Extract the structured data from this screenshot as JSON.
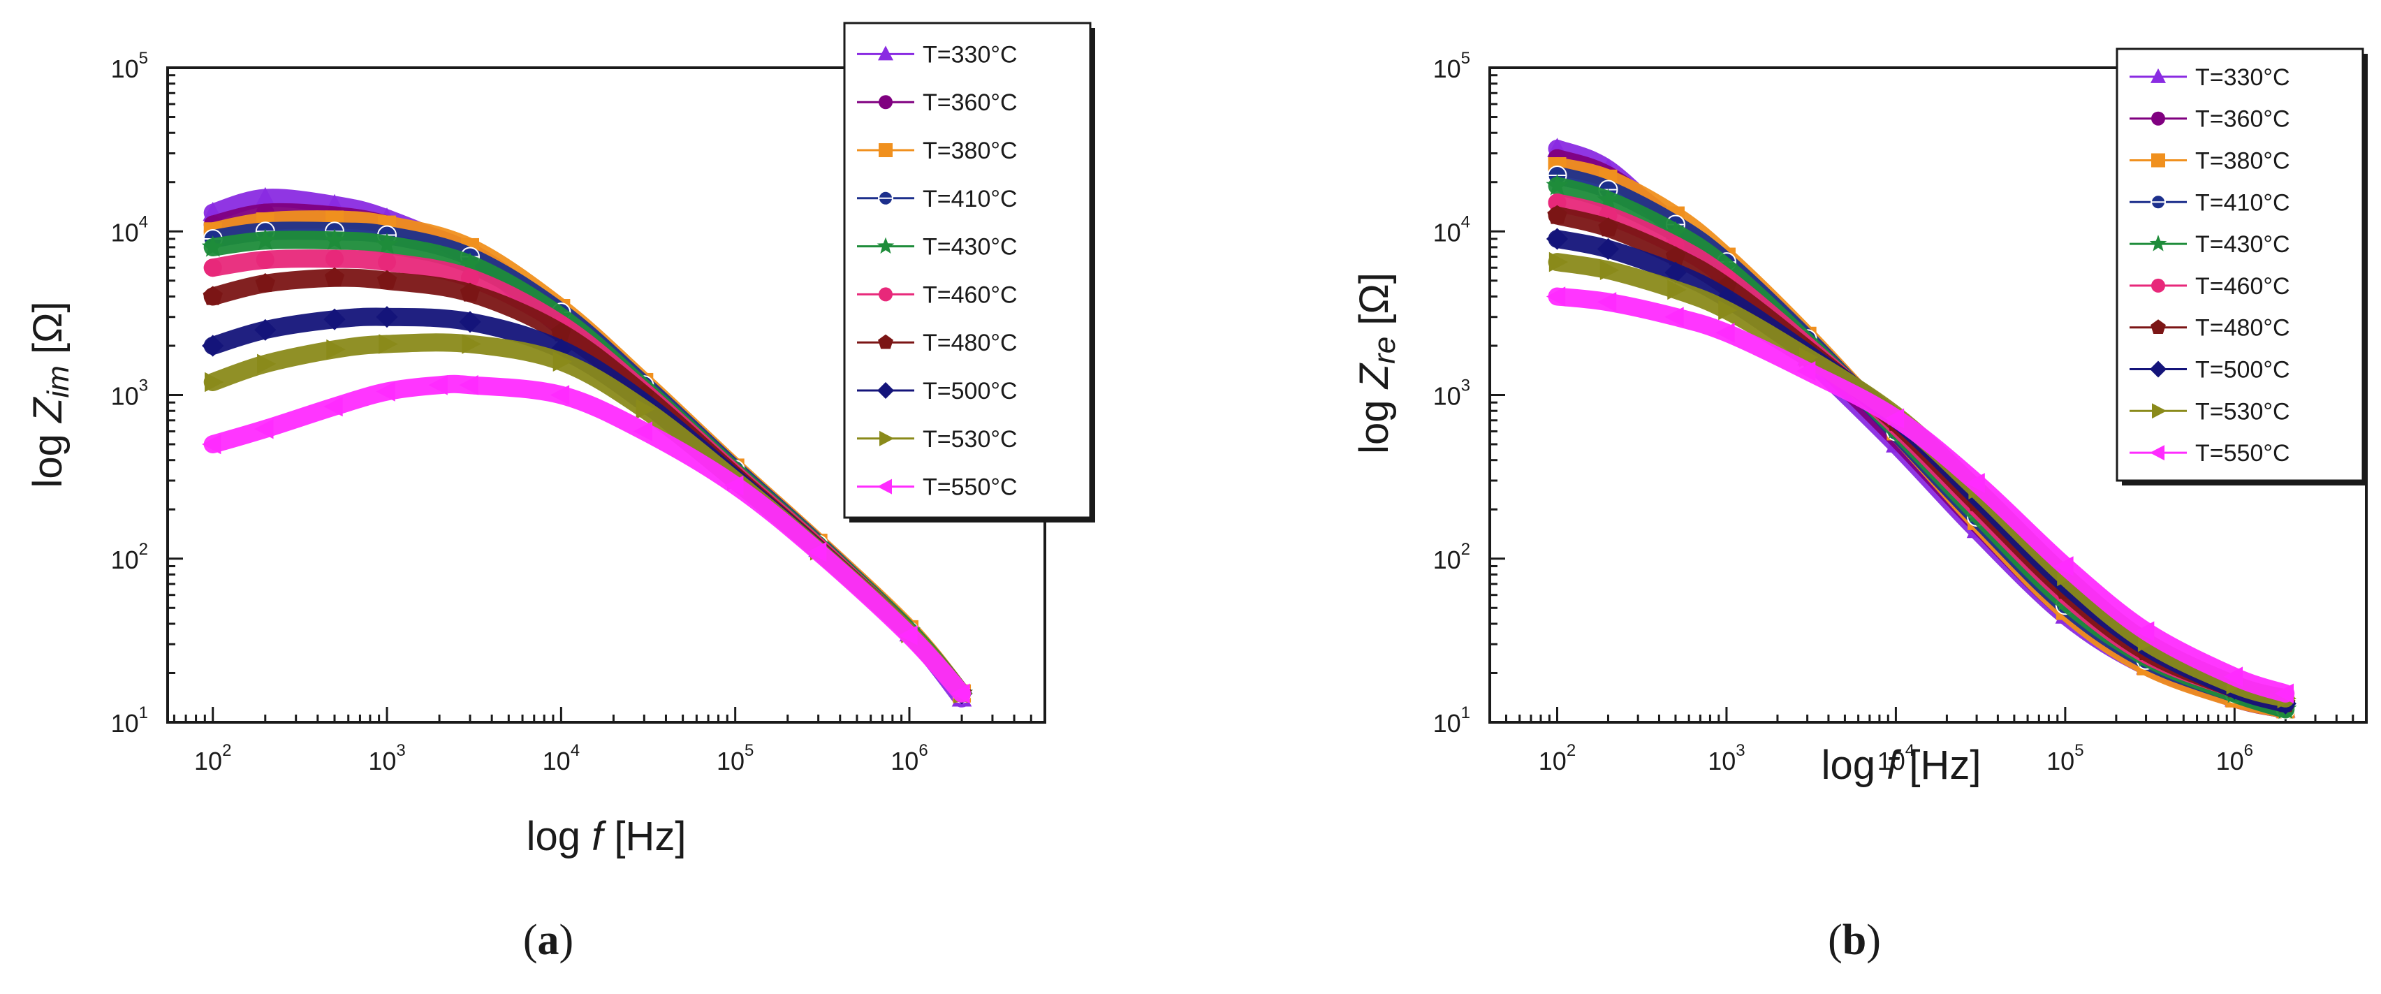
{
  "chart_data": [
    {
      "type": "line",
      "panel": "a",
      "caption": "a",
      "xlabel_prefix": "log ",
      "xlabel_var": "f",
      "xlabel_unit": " [Hz]",
      "ylabel_prefix": "log ",
      "ylabel_var": "Z",
      "ylabel_sub": "im",
      "ylabel_unit": " [Ω]",
      "xscale": "log",
      "yscale": "log",
      "xlim": [
        55,
        6000000
      ],
      "ylim": [
        10,
        100000
      ],
      "x_ticks": [
        {
          "base": "10",
          "exp": "2"
        },
        {
          "base": "10",
          "exp": "3"
        },
        {
          "base": "10",
          "exp": "4"
        },
        {
          "base": "10",
          "exp": "5"
        },
        {
          "base": "10",
          "exp": "6"
        }
      ],
      "y_ticks": [
        {
          "base": "10",
          "exp": "1"
        },
        {
          "base": "10",
          "exp": "2"
        },
        {
          "base": "10",
          "exp": "3"
        },
        {
          "base": "10",
          "exp": "4"
        },
        {
          "base": "10",
          "exp": "5"
        }
      ],
      "legend_position": "top-right",
      "series": [
        {
          "name": "T=330°C",
          "color": "#8a2be2",
          "marker": "triangle-up",
          "x": [
            100,
            200,
            500,
            1000,
            3000,
            10000,
            30000,
            100000,
            300000,
            1000000,
            2000000
          ],
          "y": [
            13000,
            16000,
            14500,
            12000,
            7000,
            2600,
            1000,
            320,
            115,
            35,
            14
          ]
        },
        {
          "name": "T=360°C",
          "color": "#800080",
          "marker": "circle",
          "x": [
            100,
            200,
            500,
            1000,
            3000,
            10000,
            30000,
            100000,
            300000,
            1000000,
            2000000
          ],
          "y": [
            11000,
            13000,
            12500,
            11000,
            7500,
            3000,
            1100,
            330,
            118,
            36,
            15
          ]
        },
        {
          "name": "T=380°C",
          "color": "#f0901e",
          "marker": "square",
          "x": [
            100,
            200,
            500,
            1000,
            3000,
            10000,
            30000,
            100000,
            300000,
            1000000,
            2000000
          ],
          "y": [
            10000,
            11500,
            11800,
            11000,
            8000,
            3400,
            1200,
            360,
            125,
            37,
            15
          ]
        },
        {
          "name": "T=410°C",
          "color": "#1c2f8c",
          "marker": "circle-half",
          "x": [
            100,
            200,
            500,
            1000,
            3000,
            10000,
            30000,
            100000,
            300000,
            1000000,
            2000000
          ],
          "y": [
            9000,
            10000,
            10000,
            9500,
            7000,
            3200,
            1150,
            350,
            122,
            36,
            15
          ]
        },
        {
          "name": "T=430°C",
          "color": "#1e8c3a",
          "marker": "star",
          "x": [
            100,
            200,
            500,
            1000,
            3000,
            10000,
            30000,
            100000,
            300000,
            1000000,
            2000000
          ],
          "y": [
            8000,
            8800,
            8800,
            8300,
            6300,
            3000,
            1100,
            340,
            120,
            36,
            15
          ]
        },
        {
          "name": "T=460°C",
          "color": "#e8287a",
          "marker": "circle",
          "x": [
            100,
            200,
            500,
            1000,
            3000,
            10000,
            30000,
            100000,
            300000,
            1000000,
            2000000
          ],
          "y": [
            6000,
            6700,
            6800,
            6500,
            5200,
            2700,
            1050,
            330,
            118,
            35,
            15
          ]
        },
        {
          "name": "T=480°C",
          "color": "#7b1515",
          "marker": "pentagon",
          "x": [
            100,
            200,
            500,
            1000,
            3000,
            10000,
            30000,
            100000,
            300000,
            1000000,
            2000000
          ],
          "y": [
            4000,
            4800,
            5200,
            5000,
            4200,
            2400,
            1000,
            320,
            115,
            35,
            15
          ]
        },
        {
          "name": "T=500°C",
          "color": "#14147a",
          "marker": "diamond",
          "x": [
            100,
            200,
            500,
            1000,
            3000,
            10000,
            30000,
            100000,
            300000,
            1000000,
            2000000
          ],
          "y": [
            2000,
            2500,
            2900,
            3000,
            2800,
            1900,
            900,
            310,
            113,
            35,
            15
          ]
        },
        {
          "name": "T=530°C",
          "color": "#8a8a1a",
          "marker": "triangle-right",
          "x": [
            100,
            200,
            500,
            1000,
            3000,
            10000,
            30000,
            100000,
            300000,
            1000000,
            2000000
          ],
          "y": [
            1200,
            1550,
            1900,
            2050,
            2050,
            1600,
            820,
            300,
            112,
            35,
            15
          ]
        },
        {
          "name": "T=550°C",
          "color": "#ff2bff",
          "marker": "triangle-left",
          "x": [
            100,
            200,
            500,
            1000,
            2000,
            3000,
            10000,
            30000,
            100000,
            300000,
            1000000,
            2000000
          ],
          "y": [
            500,
            620,
            850,
            1050,
            1150,
            1150,
            1000,
            600,
            280,
            110,
            34,
            15
          ]
        }
      ]
    },
    {
      "type": "line",
      "panel": "b",
      "caption": "b",
      "xlabel_prefix": "log ",
      "xlabel_var": "f",
      "xlabel_unit": " [Hz]",
      "ylabel_prefix": "log ",
      "ylabel_var": "Z",
      "ylabel_sub": "re",
      "ylabel_unit": " [Ω]",
      "xscale": "log",
      "yscale": "log",
      "xlim": [
        40,
        6000000
      ],
      "ylim": [
        10,
        100000
      ],
      "x_ticks": [
        {
          "base": "10",
          "exp": "2"
        },
        {
          "base": "10",
          "exp": "3"
        },
        {
          "base": "10",
          "exp": "4"
        },
        {
          "base": "10",
          "exp": "5"
        },
        {
          "base": "10",
          "exp": "6"
        }
      ],
      "y_ticks": [
        {
          "base": "10",
          "exp": "1"
        },
        {
          "base": "10",
          "exp": "2"
        },
        {
          "base": "10",
          "exp": "3"
        },
        {
          "base": "10",
          "exp": "4"
        },
        {
          "base": "10",
          "exp": "5"
        }
      ],
      "legend_position": "top-right",
      "series": [
        {
          "name": "T=330°C",
          "color": "#8a2be2",
          "marker": "triangle-up",
          "x": [
            100,
            200,
            500,
            1000,
            3000,
            10000,
            30000,
            100000,
            300000,
            1000000,
            2000000
          ],
          "y": [
            32000,
            24000,
            10000,
            5000,
            1700,
            500,
            150,
            45,
            22,
            14,
            12
          ]
        },
        {
          "name": "T=360°C",
          "color": "#800080",
          "marker": "circle",
          "x": [
            100,
            200,
            500,
            1000,
            3000,
            10000,
            30000,
            100000,
            300000,
            1000000,
            2000000
          ],
          "y": [
            28000,
            22000,
            11000,
            5800,
            1900,
            550,
            165,
            48,
            23,
            14,
            12
          ]
        },
        {
          "name": "T=380°C",
          "color": "#f0901e",
          "marker": "square",
          "x": [
            100,
            200,
            500,
            1000,
            3000,
            10000,
            30000,
            100000,
            300000,
            1000000,
            2000000
          ],
          "y": [
            25000,
            21000,
            12500,
            7000,
            2300,
            600,
            170,
            48,
            22,
            14,
            12
          ]
        },
        {
          "name": "T=410°C",
          "color": "#1c2f8c",
          "marker": "circle-half",
          "x": [
            100,
            200,
            500,
            1000,
            3000,
            10000,
            30000,
            100000,
            300000,
            1000000,
            2000000
          ],
          "y": [
            22000,
            18000,
            11000,
            6500,
            2200,
            600,
            180,
            52,
            24,
            15,
            12
          ]
        },
        {
          "name": "T=430°C",
          "color": "#1e8c3a",
          "marker": "star",
          "x": [
            100,
            200,
            500,
            1000,
            3000,
            10000,
            30000,
            100000,
            300000,
            1000000,
            2000000
          ],
          "y": [
            19000,
            15500,
            9800,
            6000,
            2100,
            620,
            190,
            55,
            25,
            15,
            12
          ]
        },
        {
          "name": "T=460°C",
          "color": "#e8287a",
          "marker": "circle",
          "x": [
            100,
            200,
            500,
            1000,
            3000,
            10000,
            30000,
            100000,
            300000,
            1000000,
            2000000
          ],
          "y": [
            15000,
            12500,
            8200,
            5200,
            2000,
            650,
            205,
            60,
            26,
            16,
            13
          ]
        },
        {
          "name": "T=480°C",
          "color": "#7b1515",
          "marker": "pentagon",
          "x": [
            100,
            200,
            500,
            1000,
            3000,
            10000,
            30000,
            100000,
            300000,
            1000000,
            2000000
          ],
          "y": [
            12500,
            10500,
            7000,
            4600,
            1900,
            680,
            220,
            64,
            27,
            16,
            13
          ]
        },
        {
          "name": "T=500°C",
          "color": "#14147a",
          "marker": "diamond",
          "x": [
            100,
            200,
            500,
            1000,
            3000,
            10000,
            30000,
            100000,
            300000,
            1000000,
            2000000
          ],
          "y": [
            9000,
            7800,
            5600,
            3900,
            1800,
            720,
            240,
            70,
            29,
            16,
            13
          ]
        },
        {
          "name": "T=530°C",
          "color": "#8a8a1a",
          "marker": "triangle-right",
          "x": [
            100,
            200,
            500,
            1000,
            3000,
            10000,
            30000,
            100000,
            300000,
            1000000,
            2000000
          ],
          "y": [
            6500,
            5800,
            4400,
            3300,
            1700,
            750,
            265,
            78,
            31,
            17,
            14
          ]
        },
        {
          "name": "T=550°C",
          "color": "#ff2bff",
          "marker": "triangle-left",
          "x": [
            100,
            200,
            500,
            1000,
            3000,
            10000,
            30000,
            100000,
            300000,
            1000000,
            2000000
          ],
          "y": [
            4000,
            3700,
            3000,
            2400,
            1400,
            720,
            290,
            90,
            36,
            19,
            15
          ]
        }
      ]
    }
  ]
}
